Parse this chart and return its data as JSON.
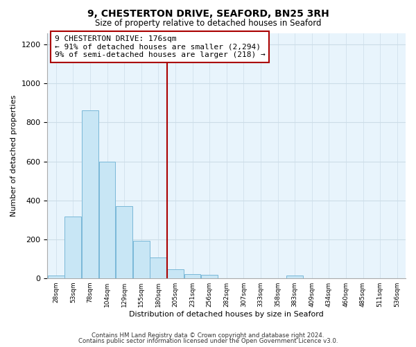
{
  "title": "9, CHESTERTON DRIVE, SEAFORD, BN25 3RH",
  "subtitle": "Size of property relative to detached houses in Seaford",
  "xlabel": "Distribution of detached houses by size in Seaford",
  "ylabel": "Number of detached properties",
  "bin_labels": [
    "28sqm",
    "53sqm",
    "78sqm",
    "104sqm",
    "129sqm",
    "155sqm",
    "180sqm",
    "205sqm",
    "231sqm",
    "256sqm",
    "282sqm",
    "307sqm",
    "333sqm",
    "358sqm",
    "383sqm",
    "409sqm",
    "434sqm",
    "460sqm",
    "485sqm",
    "511sqm",
    "536sqm"
  ],
  "bar_heights": [
    12,
    318,
    862,
    600,
    370,
    190,
    105,
    47,
    20,
    18,
    0,
    0,
    0,
    0,
    12,
    0,
    0,
    0,
    0,
    0,
    0
  ],
  "bar_color": "#c8e6f5",
  "bar_edge_color": "#7ab8d8",
  "property_line_x": 6.5,
  "property_line_color": "#aa0000",
  "annotation_text": "9 CHESTERTON DRIVE: 176sqm\n← 91% of detached houses are smaller (2,294)\n9% of semi-detached houses are larger (218) →",
  "annotation_box_color": "#ffffff",
  "annotation_box_edge_color": "#aa0000",
  "footer_line1": "Contains HM Land Registry data © Crown copyright and database right 2024.",
  "footer_line2": "Contains public sector information licensed under the Open Government Licence v3.0.",
  "ylim": [
    0,
    1260
  ],
  "yticks": [
    0,
    200,
    400,
    600,
    800,
    1000,
    1200
  ],
  "background_color": "#ffffff",
  "grid_color": "#ccdde8"
}
